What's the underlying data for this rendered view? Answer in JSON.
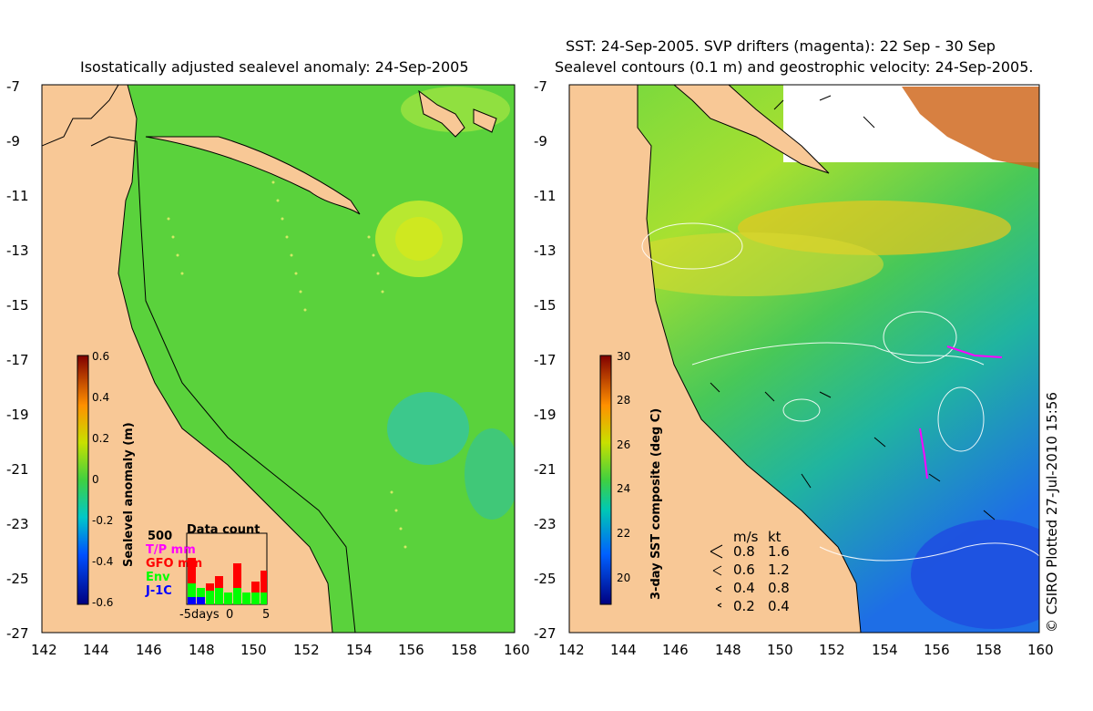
{
  "left_panel": {
    "title": "Isostatically adjusted sealevel anomaly: 24-Sep-2005",
    "colorbar_label": "Sealevel anomaly (m)",
    "colorbar_ticks": [
      "0.6",
      "0.4",
      "0.2",
      "0",
      "-0.2",
      "-0.4",
      "-0.6"
    ],
    "data_count": {
      "title": "Data count",
      "y_tick": "500",
      "x_ticks": [
        "-5days",
        "0",
        "5"
      ],
      "legend": [
        {
          "label": "T/P mm",
          "color": "#ff00ff"
        },
        {
          "label": "GFO mm",
          "color": "#ff0000"
        },
        {
          "label": "Env",
          "color": "#00ff00"
        },
        {
          "label": "J-1C",
          "color": "#0000ff"
        }
      ]
    }
  },
  "right_panel": {
    "title_line1": "SST: 24-Sep-2005. SVP drifters (magenta): 22 Sep - 30 Sep",
    "title_line2": "Sealevel contours (0.1 m) and geostrophic velocity: 24-Sep-2005.",
    "colorbar_label": "3-day SST composite (deg C)",
    "colorbar_ticks": [
      "30",
      "28",
      "26",
      "24",
      "22",
      "20"
    ],
    "velocity_legend": {
      "header_ms": "m/s",
      "header_kt": "kt",
      "rows": [
        {
          "ms": "0.8",
          "kt": "1.6"
        },
        {
          "ms": "0.6",
          "kt": "1.2"
        },
        {
          "ms": "0.4",
          "kt": "0.8"
        },
        {
          "ms": "0.2",
          "kt": "0.4"
        }
      ]
    }
  },
  "axes": {
    "y_ticks": [
      "-7",
      "-9",
      "-11",
      "-13",
      "-15",
      "-17",
      "-19",
      "-21",
      "-23",
      "-25",
      "-27"
    ],
    "x_ticks": [
      "142",
      "144",
      "146",
      "148",
      "150",
      "152",
      "154",
      "156",
      "158",
      "160"
    ]
  },
  "credit": "© CSIRO Plotted 27-Jul-2010 15:56",
  "colors": {
    "land": "#f8c896",
    "ocean_anomaly": "#5ad23c",
    "sst_warm": "#e8c020",
    "sst_cool": "#1e6ee6",
    "no_data": "#ffffff"
  }
}
